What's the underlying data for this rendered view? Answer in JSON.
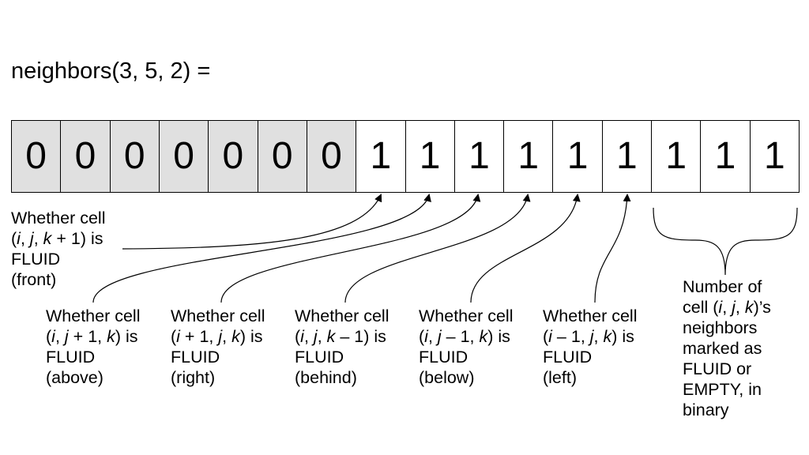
{
  "title": "neighbors(3, 5, 2) =",
  "bits": [
    "0",
    "0",
    "0",
    "0",
    "0",
    "0",
    "0",
    "1",
    "1",
    "1",
    "1",
    "1",
    "1",
    "1",
    "1",
    "1"
  ],
  "labels": {
    "front": {
      "l1": "Whether cell",
      "l2_pre": "(",
      "l2_i": "i",
      "l2_c1": ", ",
      "l2_j": "j",
      "l2_c2": ", ",
      "l2_k": "k",
      "l2_post": " + 1) is",
      "l3": "FLUID",
      "l4": "(front)"
    },
    "above": {
      "l1": "Whether cell",
      "l2_pre": "(",
      "l2_i": "i",
      "l2_c1": ", ",
      "l2_j": "j",
      "l2_mid": " + 1, ",
      "l2_k": "k",
      "l2_post": ") is",
      "l3": "FLUID",
      "l4": "(above)"
    },
    "right": {
      "l1": "Whether cell",
      "l2_pre": "(",
      "l2_i": "i",
      "l2_mid": " + 1, ",
      "l2_j": "j",
      "l2_c2": ", ",
      "l2_k": "k",
      "l2_post": ") is",
      "l3": "FLUID",
      "l4": "(right)"
    },
    "behind": {
      "l1": "Whether cell",
      "l2_pre": "(",
      "l2_i": "i",
      "l2_c1": ", ",
      "l2_j": "j",
      "l2_c2": ", ",
      "l2_k": "k",
      "l2_post": " – 1) is",
      "l3": "FLUID",
      "l4": "(behind)"
    },
    "below": {
      "l1": "Whether cell",
      "l2_pre": "(",
      "l2_i": "i",
      "l2_c1": ", ",
      "l2_j": "j",
      "l2_mid": " – 1, ",
      "l2_k": "k",
      "l2_post": ") is",
      "l3": "FLUID",
      "l4": "(below)"
    },
    "left": {
      "l1": "Whether cell",
      "l2_pre": "(",
      "l2_i": "i",
      "l2_mid": " – 1, ",
      "l2_j": "j",
      "l2_c2": ", ",
      "l2_k": "k",
      "l2_post": ") is",
      "l3": "FLUID",
      "l4": "(left)"
    },
    "count": {
      "l1": "Number of",
      "l2_pre": "cell (",
      "l2_i": "i",
      "l2_c1": ", ",
      "l2_j": "j",
      "l2_c2": ", ",
      "l2_k": "k",
      "l2_post": ")’s",
      "l3": "neighbors",
      "l4": "marked as",
      "l5": "FLUID or",
      "l6": "EMPTY, in",
      "l7": "binary"
    }
  }
}
